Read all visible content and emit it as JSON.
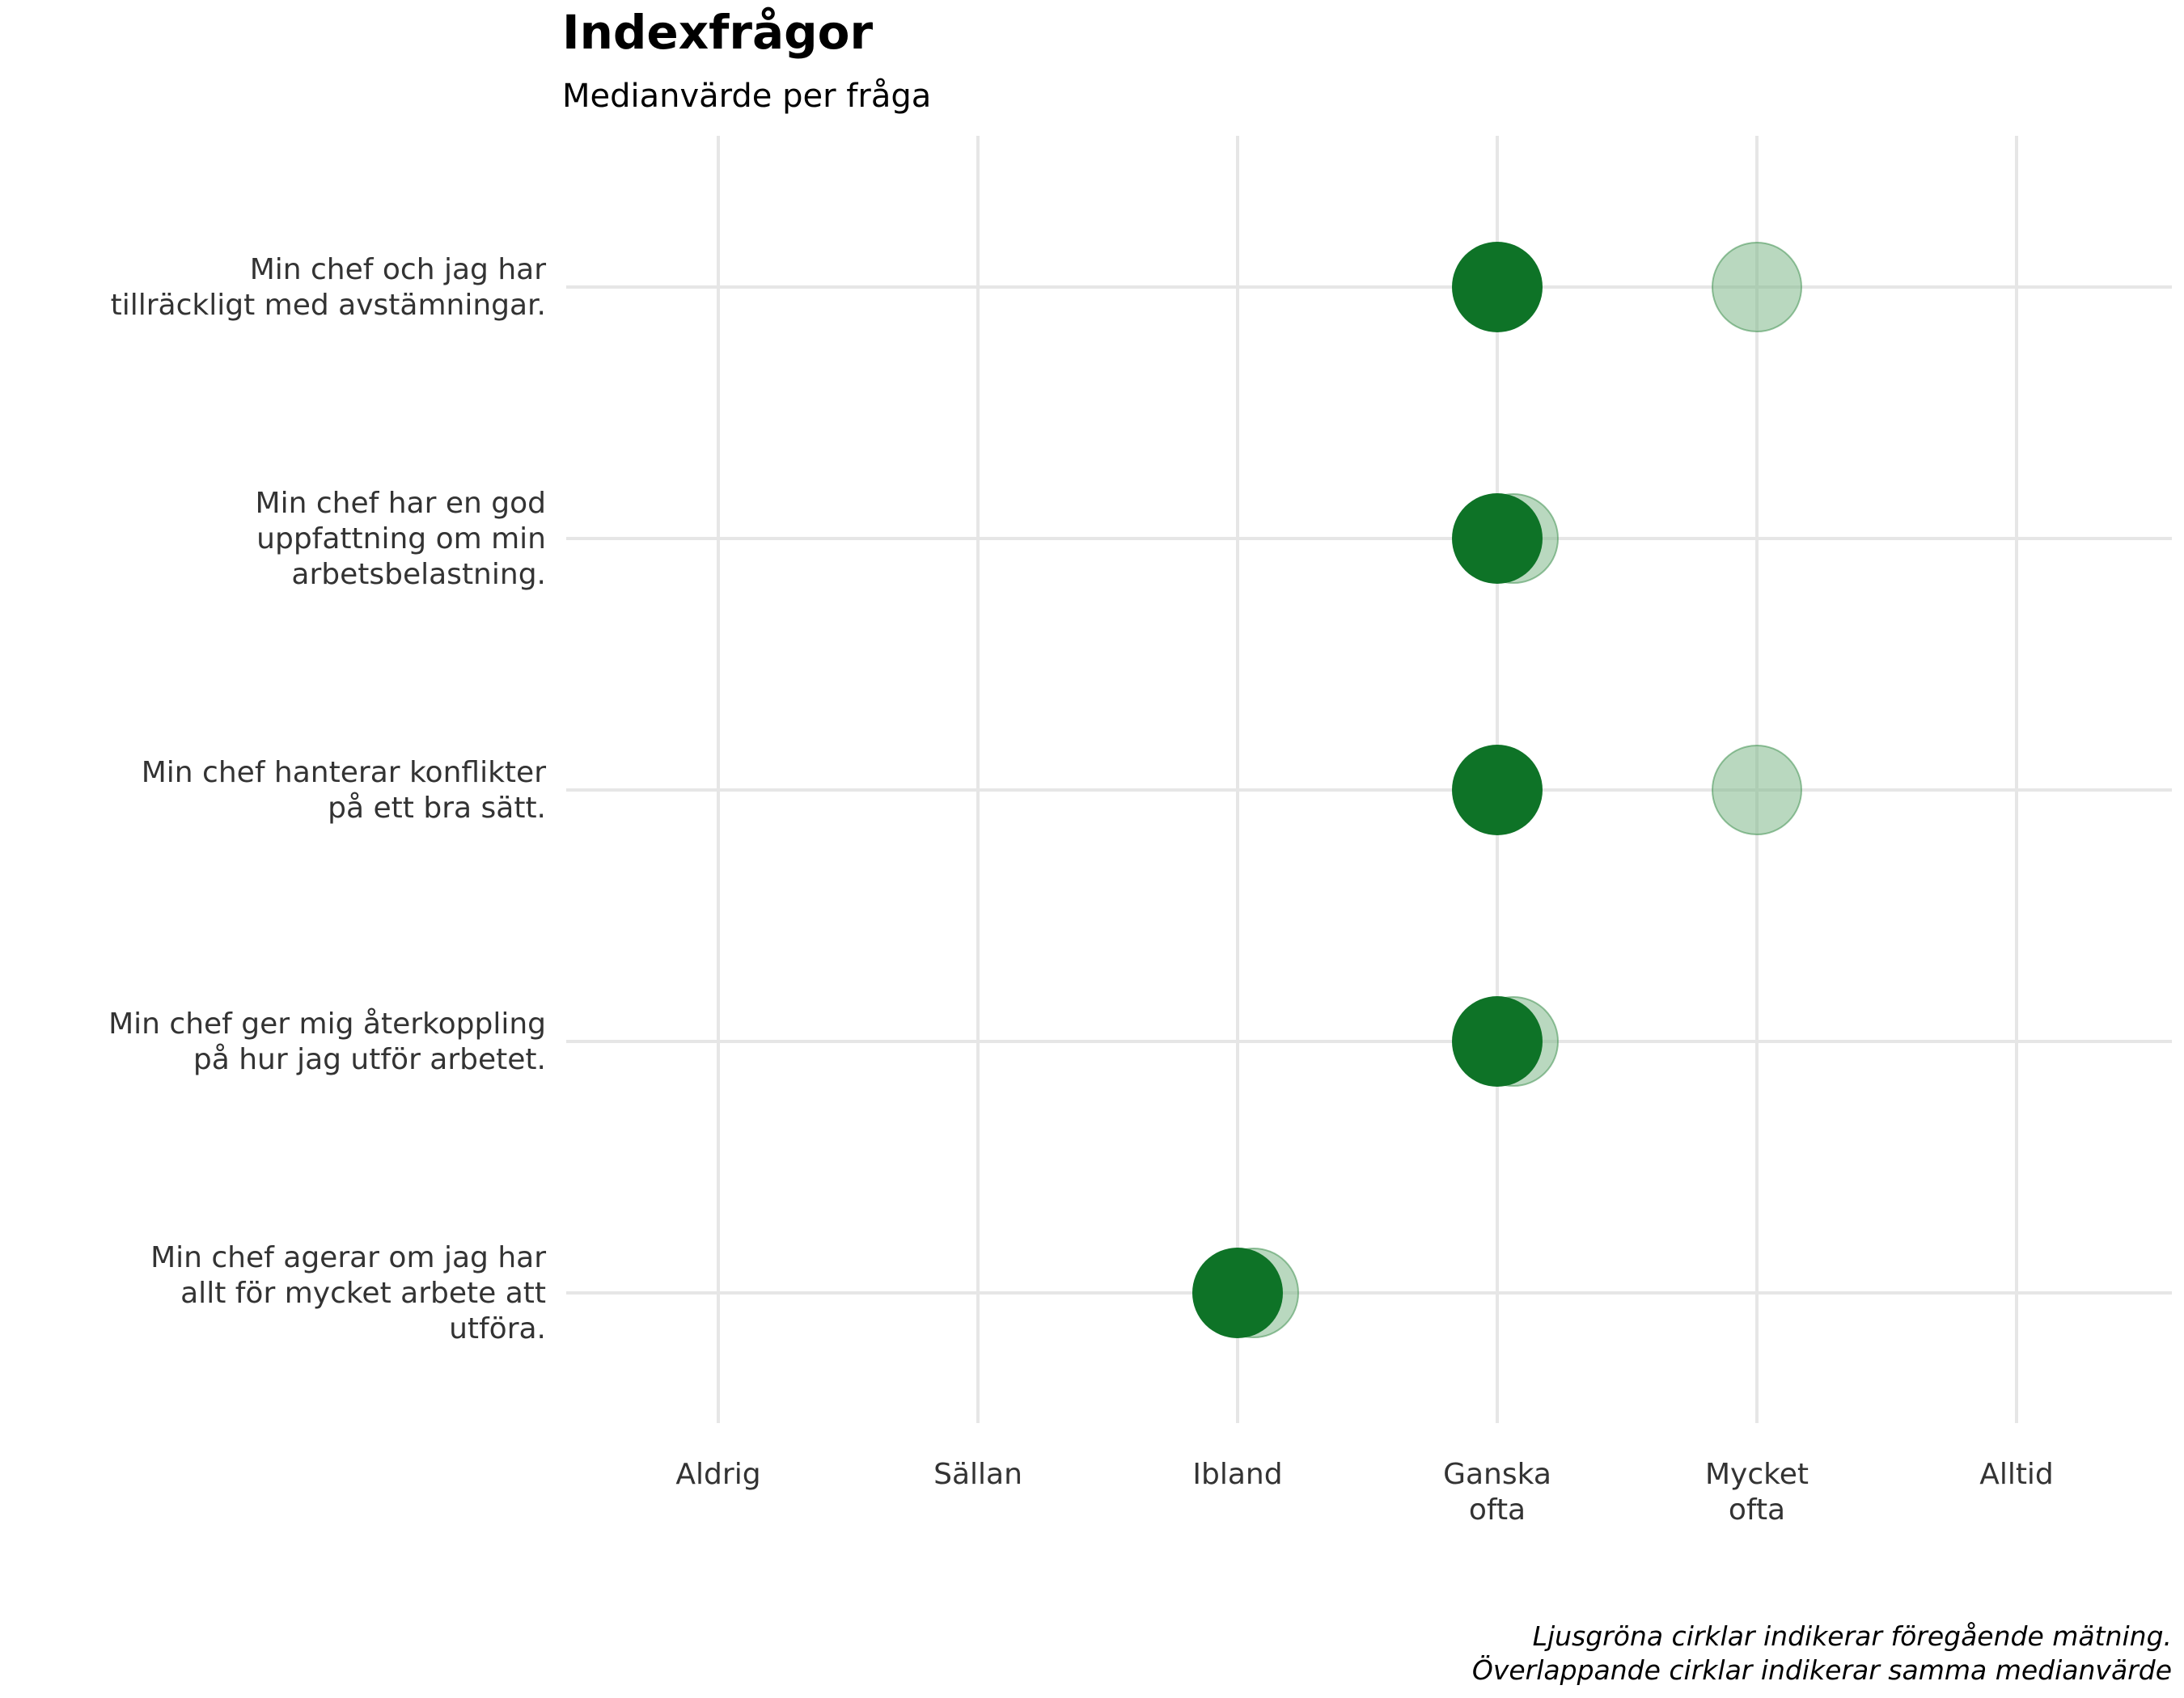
{
  "chart_data": {
    "type": "scatter",
    "title": "Indexfrågor",
    "subtitle": "Medianvärde per fråga",
    "x_scale": [
      "Aldrig",
      "Sällan",
      "Ibland",
      "Ganska ofta",
      "Mycket ofta",
      "Alltid"
    ],
    "x_tick_labels": [
      [
        "Aldrig"
      ],
      [
        "Sällan"
      ],
      [
        "Ibland"
      ],
      [
        "Ganska",
        "ofta"
      ],
      [
        "Mycket",
        "ofta"
      ],
      [
        "Alltid"
      ]
    ],
    "categories": [
      [
        "Min chef och jag har",
        "tillräckligt med avstämningar."
      ],
      [
        "Min chef har en god",
        "uppfattning om min",
        "arbetsbelastning."
      ],
      [
        "Min chef hanterar konflikter",
        "på ett bra sätt."
      ],
      [
        "Min chef ger mig återkoppling",
        "på hur jag utför arbetet."
      ],
      [
        "Min chef agerar om jag har",
        "allt för mycket arbete att",
        "utföra."
      ]
    ],
    "series": [
      {
        "role": "current",
        "color": "#0e7327",
        "values": [
          "Ganska ofta",
          "Ganska ofta",
          "Ganska ofta",
          "Ganska ofta",
          "Ibland"
        ]
      },
      {
        "role": "previous",
        "color": "#7fb88a",
        "values": [
          "Mycket ofta",
          "Ganska ofta",
          "Mycket ofta",
          "Ganska ofta",
          "Ibland"
        ]
      }
    ],
    "grid": true,
    "caption": [
      "Ljusgröna cirklar indikerar föregående mätning.",
      "Överlappande cirklar indikerar samma medianvärde"
    ]
  }
}
